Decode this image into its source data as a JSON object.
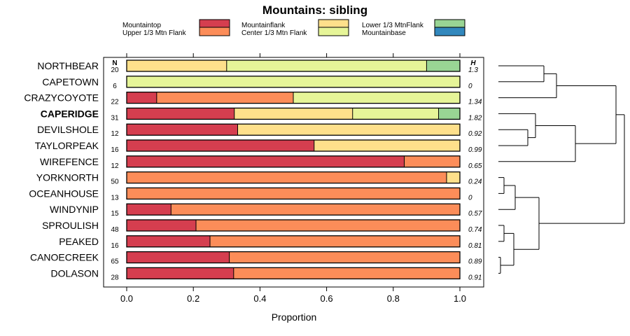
{
  "chart_data": {
    "type": "bar",
    "stacked": true,
    "orientation": "horizontal",
    "title": "Mountains: sibling",
    "xlabel": "Proportion",
    "ylabel": "",
    "xlim": [
      0,
      1
    ],
    "x_ticks": [
      "0.0",
      "0.2",
      "0.4",
      "0.6",
      "0.8",
      "1.0"
    ],
    "n_header": "N",
    "h_header": "H",
    "series": [
      {
        "name": "Mountaintop",
        "color": "#d53e4f"
      },
      {
        "name": "Upper 1/3 Mtn Flank",
        "color": "#fc8d59"
      },
      {
        "name": "Mountainflank",
        "color": "#fee08b"
      },
      {
        "name": "Center 1/3 Mtn Flank",
        "color": "#e6f598"
      },
      {
        "name": "Lower 1/3 MtnFlank",
        "color": "#99d594"
      },
      {
        "name": "Mountainbase",
        "color": "#3288bd"
      }
    ],
    "categories": [
      {
        "label": "NORTHBEAR",
        "bold": false,
        "n": "20",
        "h": "1.3",
        "values": [
          0,
          0,
          0.3,
          0.6,
          0.1,
          0
        ]
      },
      {
        "label": "CAPETOWN",
        "bold": false,
        "n": "6",
        "h": "0",
        "values": [
          0,
          0,
          0,
          1.0,
          0,
          0
        ]
      },
      {
        "label": "CRAZYCOYOTE",
        "bold": false,
        "n": "22",
        "h": "1.34",
        "values": [
          0.09,
          0.41,
          0,
          0.5,
          0,
          0
        ]
      },
      {
        "label": "CAPERIDGE",
        "bold": true,
        "n": "31",
        "h": "1.82",
        "values": [
          0.323,
          0,
          0.355,
          0.258,
          0.064,
          0
        ]
      },
      {
        "label": "DEVILSHOLE",
        "bold": false,
        "n": "12",
        "h": "0.92",
        "values": [
          0.333,
          0,
          0.667,
          0,
          0,
          0
        ]
      },
      {
        "label": "TAYLORPEAK",
        "bold": false,
        "n": "16",
        "h": "0.99",
        "values": [
          0.5625,
          0,
          0.4375,
          0,
          0,
          0
        ]
      },
      {
        "label": "WIREFENCE",
        "bold": false,
        "n": "12",
        "h": "0.65",
        "values": [
          0.833,
          0.167,
          0,
          0,
          0,
          0
        ]
      },
      {
        "label": "YORKNORTH",
        "bold": false,
        "n": "50",
        "h": "0.24",
        "values": [
          0,
          0.96,
          0.04,
          0,
          0,
          0
        ]
      },
      {
        "label": "OCEANHOUSE",
        "bold": false,
        "n": "13",
        "h": "0",
        "values": [
          0,
          1.0,
          0,
          0,
          0,
          0
        ]
      },
      {
        "label": "WINDYNIP",
        "bold": false,
        "n": "15",
        "h": "0.57",
        "values": [
          0.133,
          0.867,
          0,
          0,
          0,
          0
        ]
      },
      {
        "label": "SPROULISH",
        "bold": false,
        "n": "48",
        "h": "0.74",
        "values": [
          0.208,
          0.792,
          0,
          0,
          0,
          0
        ]
      },
      {
        "label": "PEAKED",
        "bold": false,
        "n": "16",
        "h": "0.81",
        "values": [
          0.25,
          0.75,
          0,
          0,
          0,
          0
        ]
      },
      {
        "label": "CANOECREEK",
        "bold": false,
        "n": "65",
        "h": "0.89",
        "values": [
          0.308,
          0.692,
          0,
          0,
          0,
          0
        ]
      },
      {
        "label": "DOLASON",
        "bold": false,
        "n": "28",
        "h": "0.91",
        "values": [
          0.321,
          0.679,
          0,
          0,
          0,
          0
        ]
      }
    ],
    "dendrogram_present": true
  }
}
